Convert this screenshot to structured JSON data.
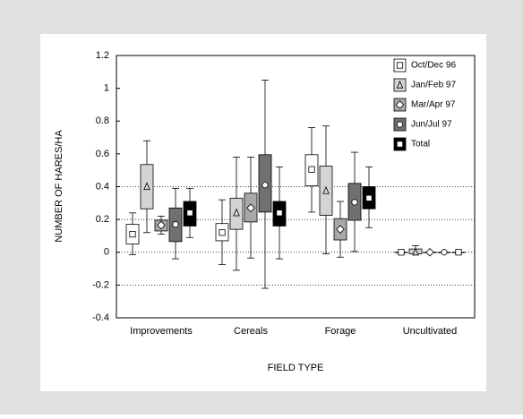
{
  "chart_data": {
    "type": "box",
    "x_label": "FIELD TYPE",
    "y_label": "NUMBER  OF HARES/HA",
    "categories": [
      "Improvements",
      "Cereals",
      "Forage",
      "Uncultivated"
    ],
    "ylim": [
      -0.4,
      1.2
    ],
    "yticks": [
      -0.4,
      -0.2,
      0,
      0.2,
      0.4,
      0.6,
      0.8,
      1,
      1.2
    ],
    "grid_lines": [
      -0.2,
      0,
      0.2,
      0.4
    ],
    "legend": "top-right",
    "series": [
      {
        "name": "Oct/Dec 96",
        "color": "#ffffff",
        "marker": "square",
        "marker_color": "#ffffff",
        "whisker_low": [
          -0.015,
          -0.075,
          0.245,
          0
        ],
        "q1": [
          0.05,
          0.07,
          0.405,
          0
        ],
        "q3": [
          0.17,
          0.175,
          0.595,
          0
        ],
        "whisker_high": [
          0.24,
          0.32,
          0.76,
          0
        ],
        "mean": [
          0.11,
          0.12,
          0.505,
          0
        ]
      },
      {
        "name": "Jan/Feb 97",
        "color": "#d4d4d4",
        "marker": "triangle",
        "marker_color": "#d4d4d4",
        "whisker_low": [
          0.12,
          -0.11,
          -0.01,
          -0.01
        ],
        "q1": [
          0.265,
          0.14,
          0.225,
          -0.01
        ],
        "q3": [
          0.535,
          0.33,
          0.525,
          0.02
        ],
        "whisker_high": [
          0.68,
          0.58,
          0.77,
          0.04
        ],
        "mean": [
          0.4,
          0.24,
          0.375,
          0
        ]
      },
      {
        "name": "Mar/Apr 97",
        "color": "#a8a8a8",
        "marker": "diamond",
        "marker_color": "#ffffff",
        "whisker_low": [
          0.11,
          -0.035,
          -0.03,
          0
        ],
        "q1": [
          0.13,
          0.185,
          0.075,
          0
        ],
        "q3": [
          0.195,
          0.36,
          0.205,
          0
        ],
        "whisker_high": [
          0.22,
          0.58,
          0.31,
          0
        ],
        "mean": [
          0.165,
          0.27,
          0.14,
          0
        ]
      },
      {
        "name": "Jun/Jul 97",
        "color": "#707070",
        "marker": "circle",
        "marker_color": "#ffffff",
        "whisker_low": [
          -0.04,
          -0.22,
          0.005,
          0
        ],
        "q1": [
          0.065,
          0.245,
          0.195,
          0
        ],
        "q3": [
          0.27,
          0.595,
          0.42,
          0
        ],
        "whisker_high": [
          0.39,
          1.05,
          0.61,
          0
        ],
        "mean": [
          0.17,
          0.41,
          0.305,
          0
        ]
      },
      {
        "name": "Total",
        "color": "#000000",
        "marker": "square",
        "marker_color": "#ffffff",
        "whisker_low": [
          0.09,
          -0.04,
          0.15,
          0
        ],
        "q1": [
          0.16,
          0.16,
          0.265,
          0
        ],
        "q3": [
          0.31,
          0.31,
          0.4,
          0
        ],
        "whisker_high": [
          0.39,
          0.52,
          0.52,
          0
        ],
        "mean": [
          0.24,
          0.24,
          0.33,
          0
        ]
      }
    ]
  }
}
